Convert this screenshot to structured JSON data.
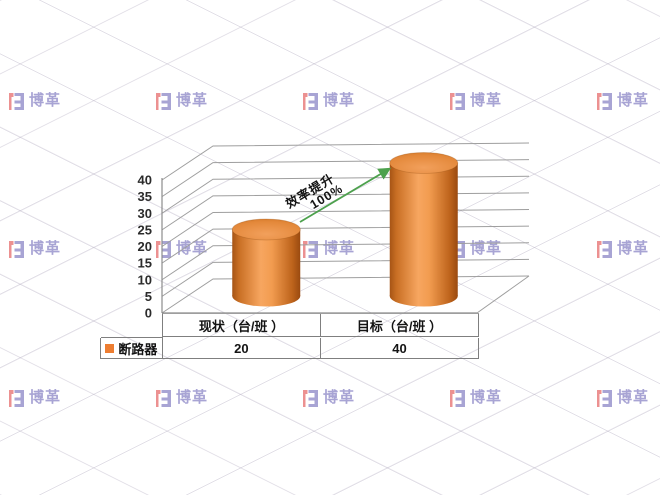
{
  "page": {
    "background": "#ffffff"
  },
  "watermark": {
    "text": "博革",
    "colors": {
      "logo_red": "#ec9191",
      "logo_purple": "#a8a4d4"
    }
  },
  "chart_data": {
    "type": "bar",
    "subtype": "3d-cylinder",
    "categories": [
      "现状（台/班 ）",
      "目标（台/班 ）"
    ],
    "series": [
      {
        "name": "断路器",
        "values": [
          20,
          40
        ]
      }
    ],
    "ylim": [
      0,
      40
    ],
    "yticks": [
      0,
      5,
      10,
      15,
      20,
      25,
      30,
      35,
      40
    ],
    "grid": true,
    "legend_position": "data-table-left",
    "bar_color": "#ED8B41",
    "annotation": {
      "lines": [
        "效率提升",
        "100%"
      ],
      "arrow_color": "#4da14d"
    }
  },
  "colors": {
    "grid_line": "#9e9e9e",
    "axis_line": "#8c8c8c",
    "table_border": "#7f7f7f",
    "text": "#141414",
    "legend_swatch": "#ED7D31"
  }
}
